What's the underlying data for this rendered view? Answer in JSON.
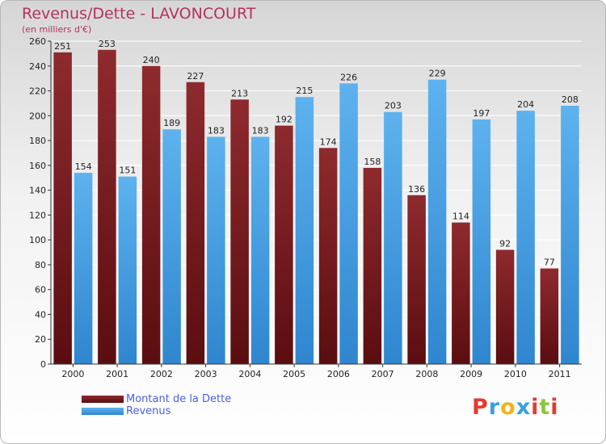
{
  "header": {
    "title": "Revenus/Dette - LAVONCOURT",
    "subtitle": "(en milliers d'€)"
  },
  "colors": {
    "dette": "#7a1e22",
    "revenus": "#4aa3e6",
    "title": "#b5325c",
    "legend_text": "#4a5fe0"
  },
  "chart_data": {
    "type": "bar",
    "title": "Revenus/Dette - LAVONCOURT",
    "ylabel": "(en milliers d'€)",
    "xlabel": "",
    "categories": [
      "2000",
      "2001",
      "2002",
      "2003",
      "2004",
      "2005",
      "2006",
      "2007",
      "2008",
      "2009",
      "2010",
      "2011"
    ],
    "series": [
      {
        "name": "Montant de la Dette",
        "values": [
          251,
          253,
          240,
          227,
          213,
          192,
          174,
          158,
          136,
          114,
          92,
          77
        ]
      },
      {
        "name": "Revenus",
        "values": [
          154,
          151,
          189,
          183,
          183,
          215,
          226,
          203,
          229,
          197,
          204,
          208
        ]
      }
    ],
    "ylim": [
      0,
      260
    ],
    "yticks": [
      0,
      20,
      40,
      60,
      80,
      100,
      120,
      140,
      160,
      180,
      200,
      220,
      240,
      260
    ],
    "grid": true,
    "legend": "bottom-left"
  },
  "legend": {
    "items": [
      "Montant de la Dette",
      "Revenus"
    ]
  },
  "logo": {
    "letters": [
      "P",
      "r",
      "o",
      "x",
      "i",
      "t",
      "i"
    ],
    "letter_colors": [
      "#e63a2e",
      "#3aa0e0",
      "#f2b21b",
      "#3aa0e0",
      "#e63a2e",
      "#8cc63f",
      "#e63a2e"
    ]
  }
}
